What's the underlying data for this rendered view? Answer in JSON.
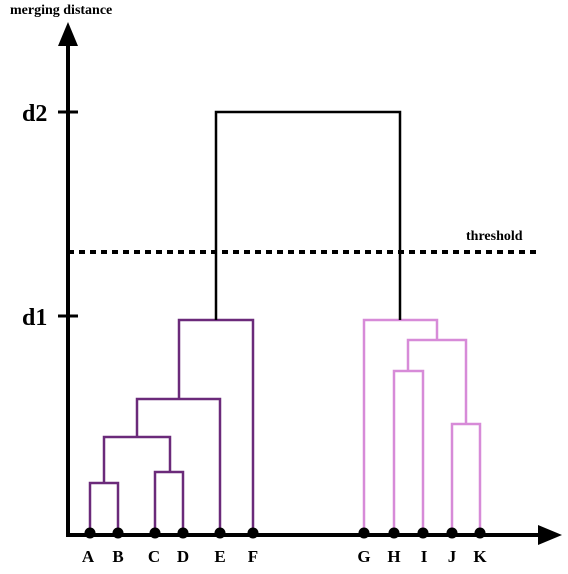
{
  "axis": {
    "y_label": "merging distance",
    "ticks": [
      {
        "label": "d2"
      },
      {
        "label": "d1"
      }
    ]
  },
  "threshold": {
    "label": "threshold"
  },
  "leaves": [
    "A",
    "B",
    "C",
    "D",
    "E",
    "F",
    "G",
    "H",
    "I",
    "J",
    "K"
  ],
  "colors": {
    "left_cluster": "#6b2a7a",
    "right_cluster": "#d78bd8",
    "root": "#000000",
    "axis": "#000000"
  }
}
